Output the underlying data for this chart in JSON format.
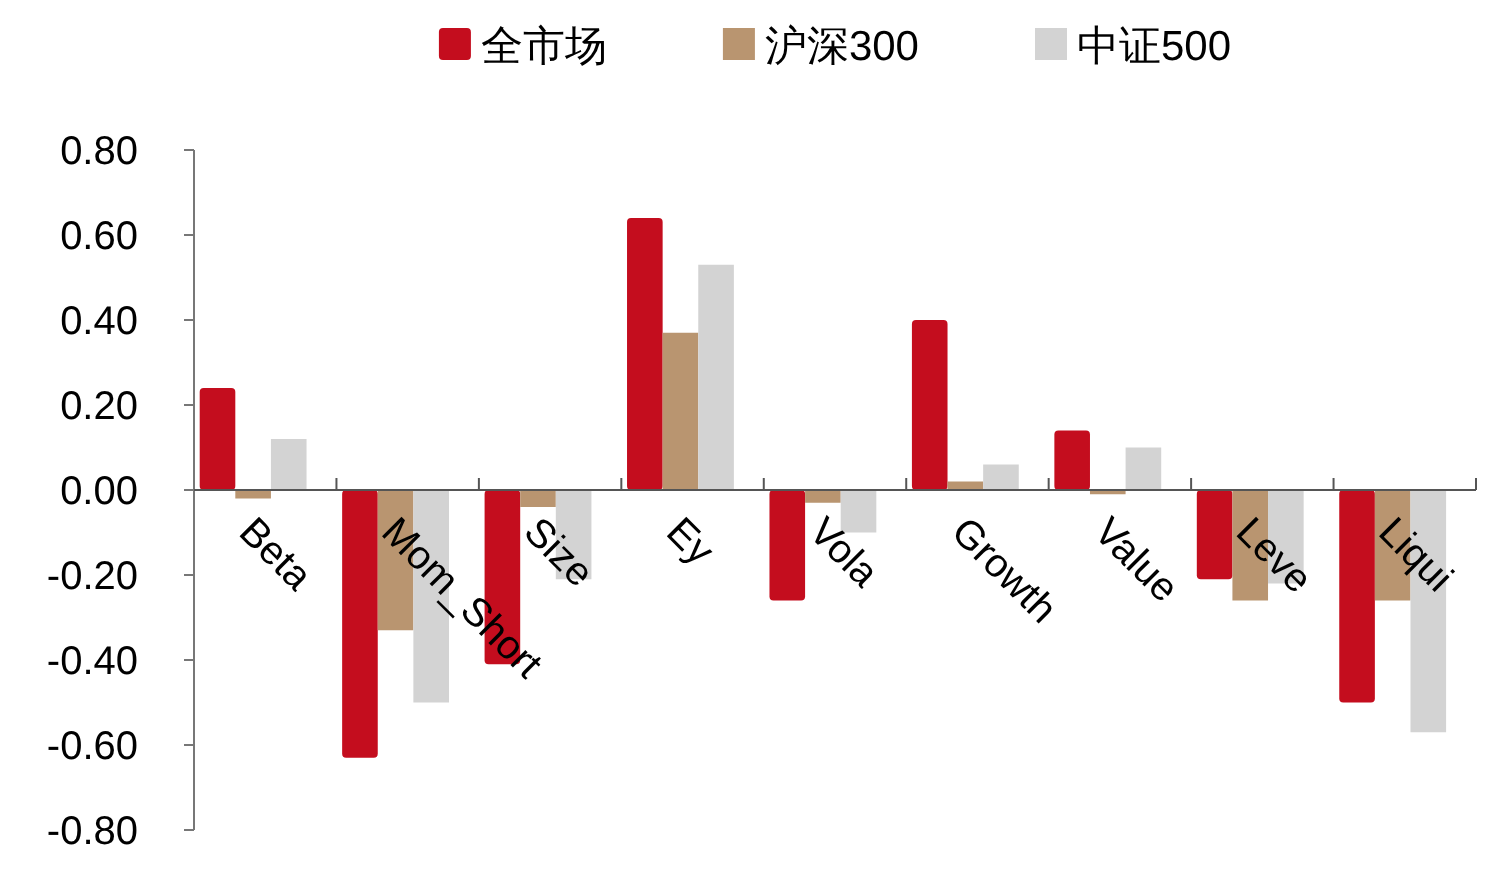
{
  "chart_data": {
    "type": "bar",
    "categories": [
      "Beta",
      "Mom_Short",
      "Size",
      "Ey",
      "Vola",
      "Growth",
      "Value",
      "Leve",
      "Liqui"
    ],
    "series": [
      {
        "name": "全市场",
        "color": "#c40d1e",
        "values": [
          0.24,
          -0.63,
          -0.41,
          0.64,
          -0.26,
          0.4,
          0.14,
          -0.21,
          -0.5
        ]
      },
      {
        "name": "沪深300",
        "color": "#b99570",
        "values": [
          -0.02,
          -0.33,
          -0.04,
          0.37,
          -0.03,
          0.02,
          -0.01,
          -0.26,
          -0.26
        ]
      },
      {
        "name": "中证500",
        "color": "#d3d3d3",
        "values": [
          0.12,
          -0.5,
          -0.21,
          0.53,
          -0.1,
          0.06,
          0.1,
          -0.22,
          -0.57
        ]
      }
    ],
    "ylim": [
      -0.8,
      0.8
    ],
    "yticks": [
      {
        "value": -0.8,
        "label": "-0.80"
      },
      {
        "value": -0.6,
        "label": "-0.60"
      },
      {
        "value": -0.4,
        "label": "-0.40"
      },
      {
        "value": -0.2,
        "label": "-0.20"
      },
      {
        "value": 0,
        "label": "0.00"
      },
      {
        "value": 0.2,
        "label": "0.20"
      },
      {
        "value": 0.4,
        "label": "0.40"
      },
      {
        "value": 0.6,
        "label": "0.60"
      },
      {
        "value": 0.8,
        "label": "0.80"
      }
    ],
    "grid": false,
    "legend": "top"
  }
}
